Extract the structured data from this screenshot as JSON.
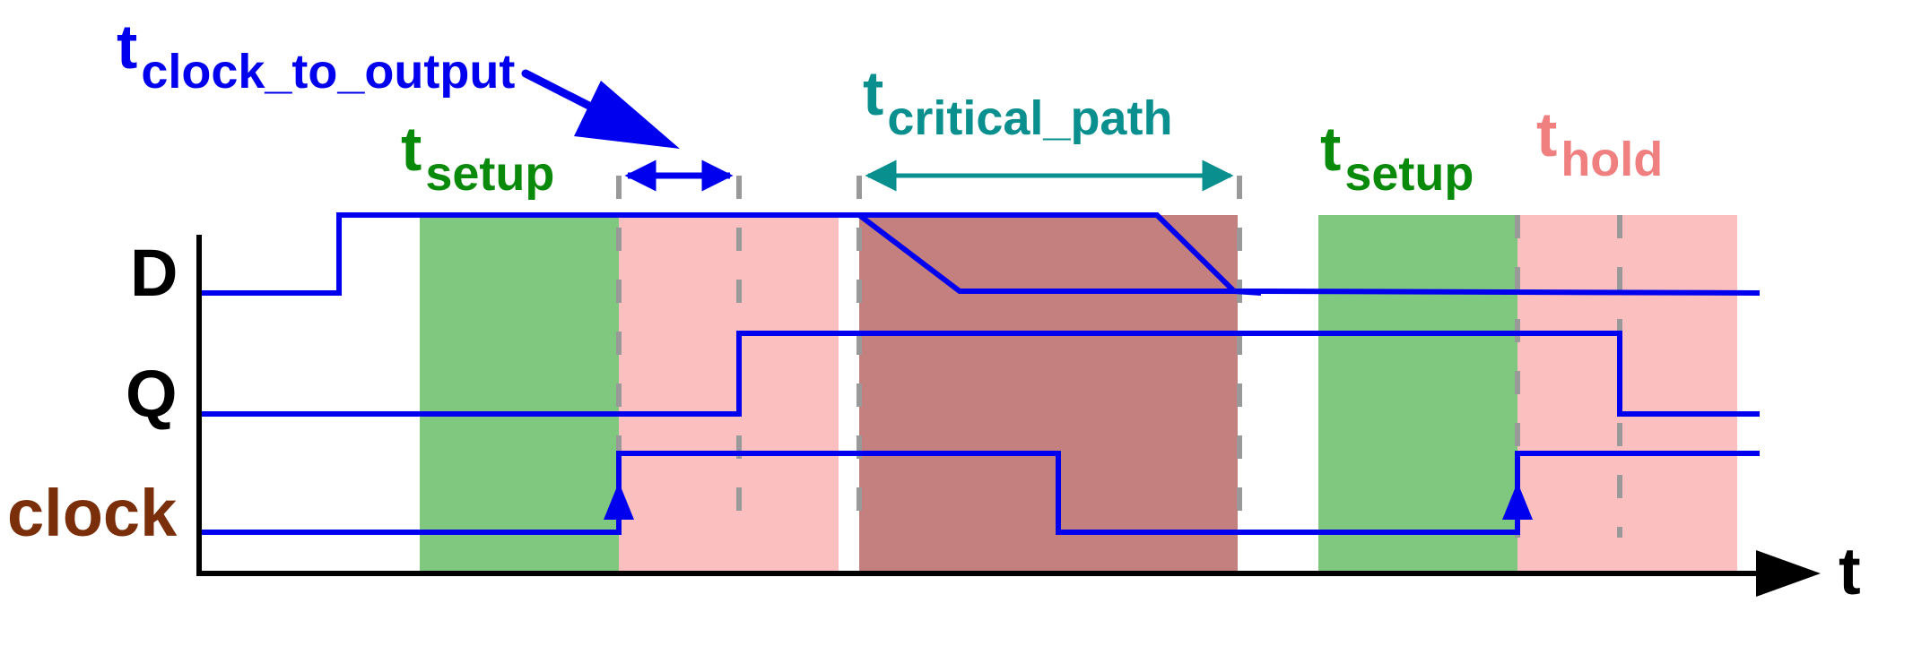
{
  "colors": {
    "setup": "#80c880",
    "hold": "#fcbfbf",
    "critical": "#c47f7f",
    "signal": "#0000ee",
    "critical_label": "#0a8f8f",
    "setup_label": "#0a8a0a",
    "hold_label": "#f08080",
    "clock_label": "#7a2e0a",
    "axis": "#000000",
    "guide": "#999999"
  },
  "signals": {
    "d": "D",
    "q": "Q",
    "clock": "clock"
  },
  "axis": {
    "time": "t"
  },
  "labels": {
    "clock_to_output": {
      "main": "t",
      "sub": "clock_to_output"
    },
    "critical_path": {
      "main": "t",
      "sub": "critical_path"
    },
    "setup_1": {
      "main": "t",
      "sub": "setup"
    },
    "setup_2": {
      "main": "t",
      "sub": "setup"
    },
    "hold": {
      "main": "t",
      "sub": "hold"
    }
  }
}
